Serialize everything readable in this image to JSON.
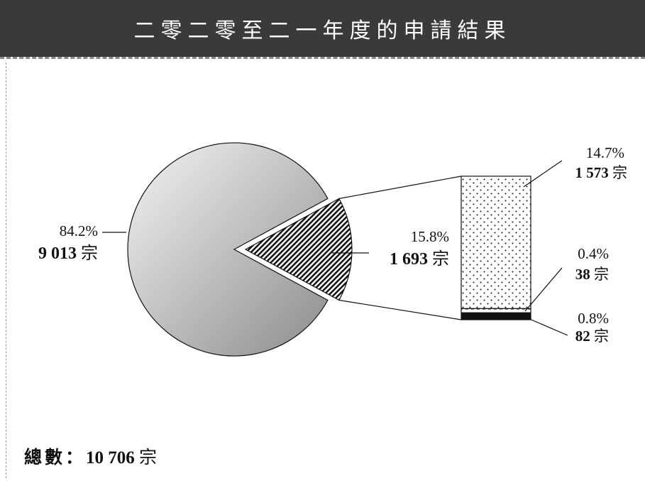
{
  "title": "二零二零至二一年度的申請結果",
  "chart_data": {
    "type": "pie",
    "title": "二零二零至二一年度的申請結果",
    "slices": [
      {
        "percent_label": "84.2%",
        "count_label": "9 013",
        "unit": "宗",
        "value": 9013,
        "fill": "gradient-grey"
      },
      {
        "percent_label": "15.8%",
        "count_label": "1 693",
        "unit": "宗",
        "value": 1693,
        "fill": "hatched",
        "exploded": true
      }
    ],
    "breakdown": {
      "of_slice": "15.8%",
      "type": "stacked-bar",
      "segments": [
        {
          "percent_label": "14.7%",
          "count_label": "1 573",
          "unit": "宗",
          "value": 1573,
          "fill": "dotted"
        },
        {
          "percent_label": "0.4%",
          "count_label": "38",
          "unit": "宗",
          "value": 38,
          "fill": "dashed"
        },
        {
          "percent_label": "0.8%",
          "count_label": "82",
          "unit": "宗",
          "value": 82,
          "fill": "solid-black"
        }
      ]
    },
    "total": {
      "label": "總數：",
      "value_label": "10 706",
      "unit": "宗",
      "value": 10706
    }
  },
  "colors": {
    "header_bg": "#3a3a3a",
    "header_text": "#ffffff",
    "pie_light": "#f4f4f4",
    "pie_dark": "#8c8c8c",
    "ink": "#111111"
  }
}
